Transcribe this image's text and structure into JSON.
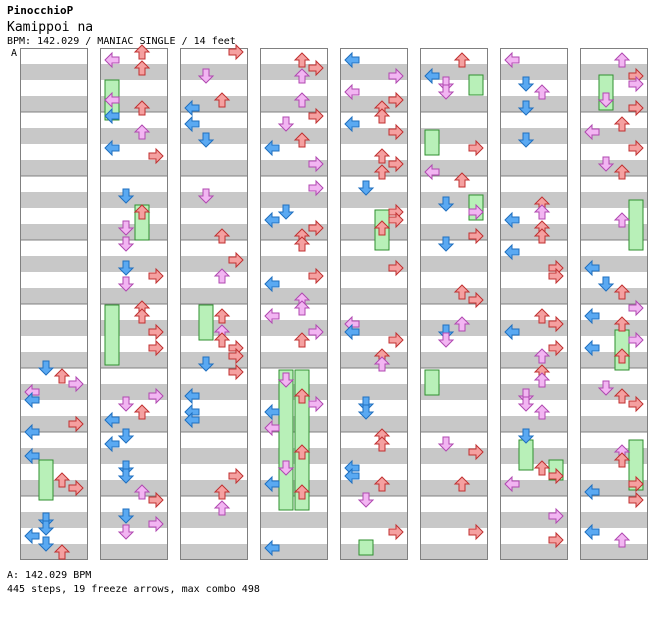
{
  "header": {
    "artist": "PinocchioP",
    "title": "Kamippoi na",
    "meta": "BPM: 142.029 / MANIAC SINGLE / 14 feet",
    "bpm_marker": "A"
  },
  "footer": {
    "bpm_line": "A: 142.029 BPM",
    "stats": "445 steps, 19 freeze arrows, max combo 498"
  },
  "colors": {
    "stripe": "#c8c8c8",
    "border": "#808080",
    "left_arrow": "#5aa9f2",
    "down_arrow": "#5aa9f2",
    "up_arrow": "#f5a0a0",
    "right_arrow": "#f5a0a0",
    "offbeat_arrow": "#f2b5f2",
    "freeze": "#b8f0b8"
  },
  "chart_data": {
    "type": "step-chart",
    "columns": 8,
    "measures_per_column": 8,
    "steps": 445,
    "freeze_arrows": 19,
    "max_combo": 498,
    "bpm": 142.029
  }
}
